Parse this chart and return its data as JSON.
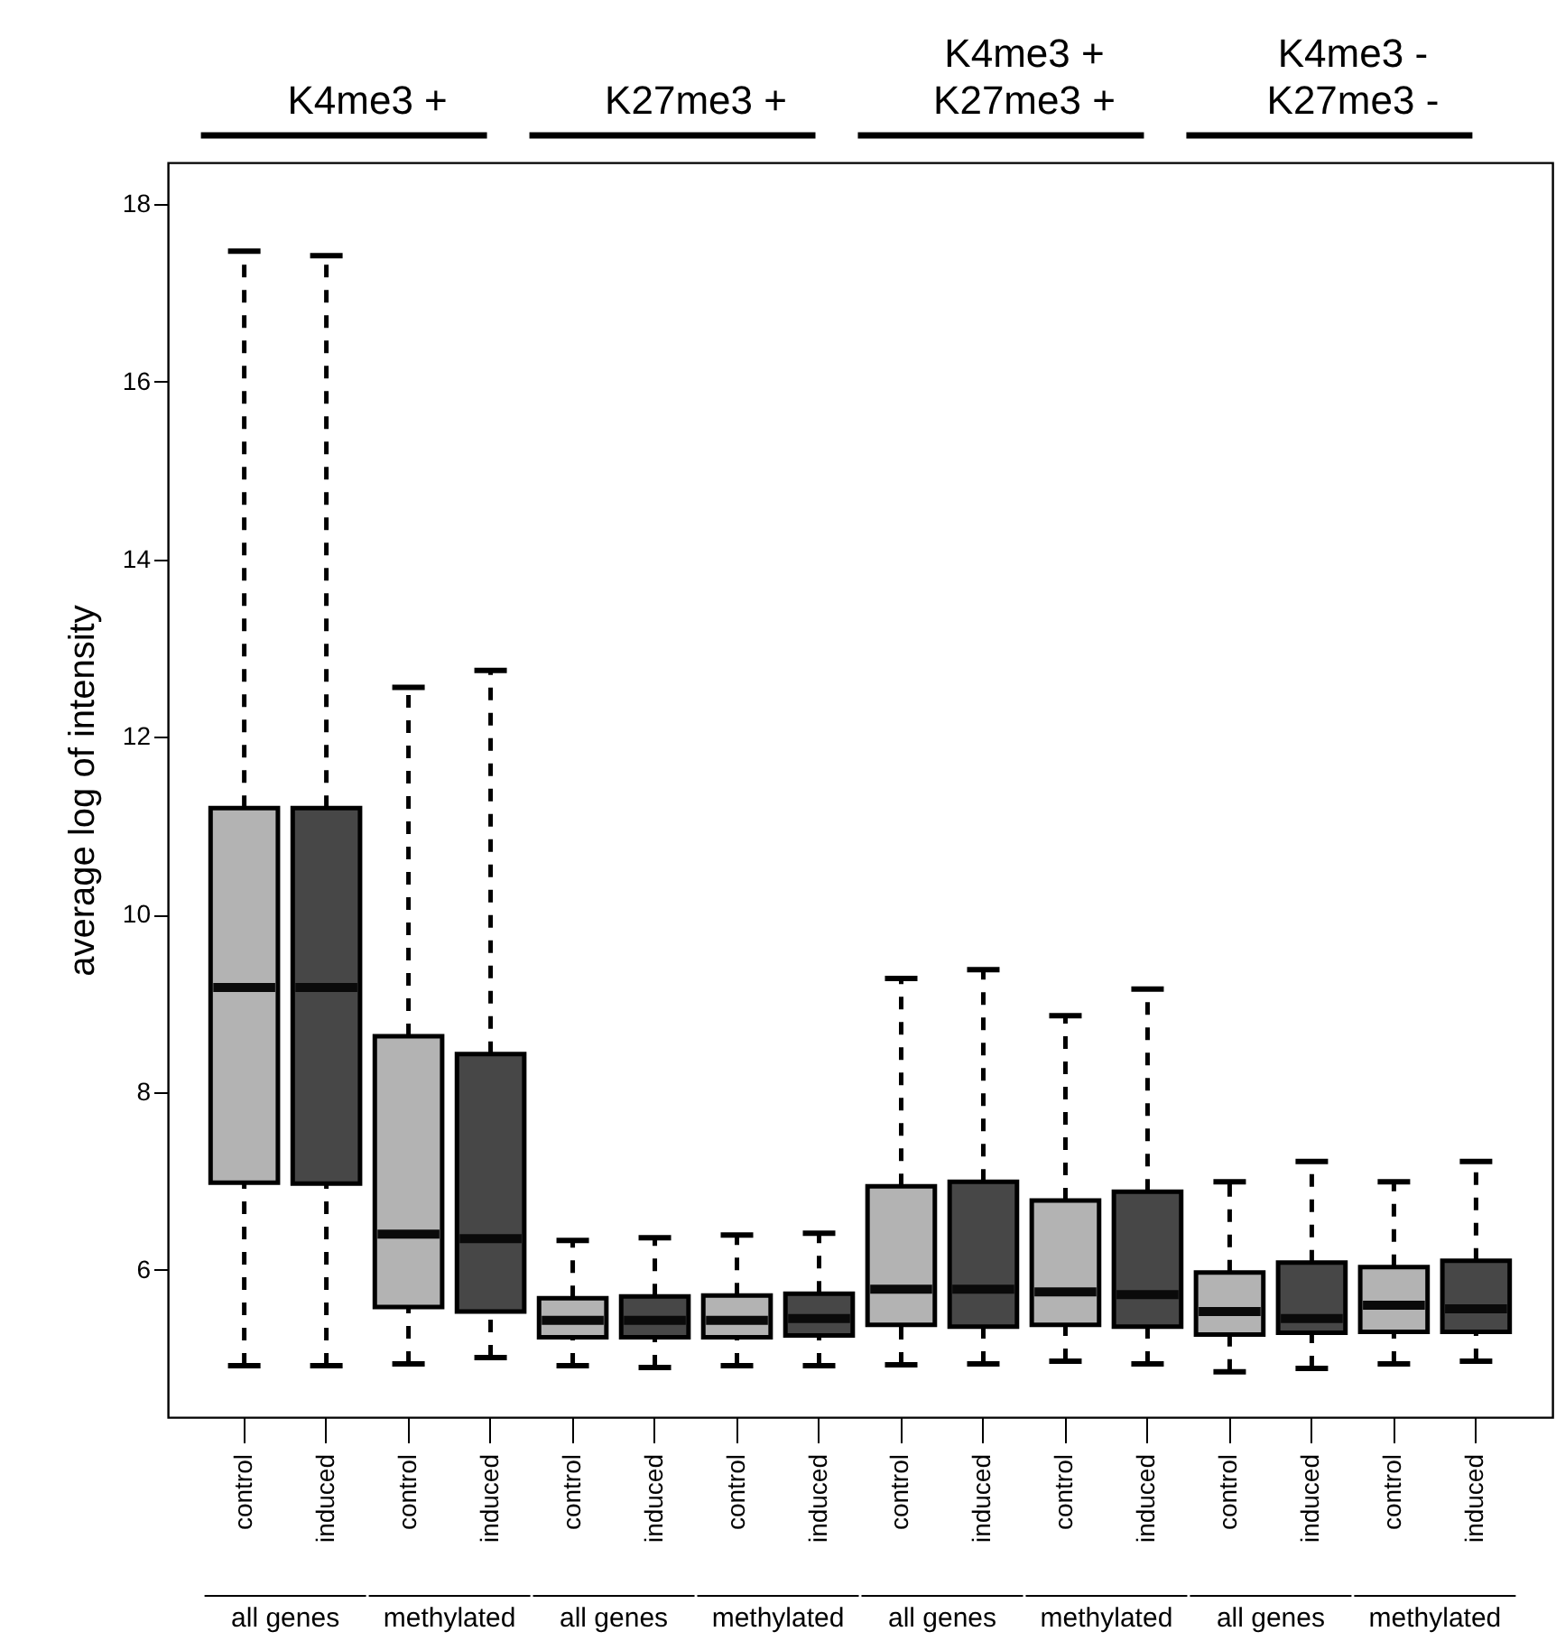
{
  "chart_data": {
    "type": "box",
    "ylabel": "average log of  intensity",
    "categories": [
      "control",
      "induced",
      "control",
      "induced",
      "control",
      "induced",
      "control",
      "induced",
      "control",
      "induced",
      "control",
      "induced",
      "control",
      "induced",
      "control",
      "induced"
    ],
    "colors": [
      "#b3b3b3",
      "#474747",
      "#b3b3b3",
      "#474747",
      "#b3b3b3",
      "#474747",
      "#b3b3b3",
      "#474747",
      "#b3b3b3",
      "#474747",
      "#b3b3b3",
      "#474747",
      "#b3b3b3",
      "#474747",
      "#b3b3b3",
      "#474747"
    ],
    "boxes": [
      {
        "low": 4.92,
        "q1": 6.98,
        "median": 9.18,
        "q3": 11.2,
        "high": 17.47
      },
      {
        "low": 4.92,
        "q1": 6.97,
        "median": 9.18,
        "q3": 11.2,
        "high": 17.42
      },
      {
        "low": 4.94,
        "q1": 5.58,
        "median": 6.4,
        "q3": 8.63,
        "high": 12.56
      },
      {
        "low": 5.01,
        "q1": 5.53,
        "median": 6.35,
        "q3": 8.43,
        "high": 12.75
      },
      {
        "low": 4.92,
        "q1": 5.24,
        "median": 5.43,
        "q3": 5.68,
        "high": 6.33
      },
      {
        "low": 4.9,
        "q1": 5.24,
        "median": 5.43,
        "q3": 5.7,
        "high": 6.36
      },
      {
        "low": 4.92,
        "q1": 5.24,
        "median": 5.43,
        "q3": 5.71,
        "high": 6.39
      },
      {
        "low": 4.92,
        "q1": 5.26,
        "median": 5.45,
        "q3": 5.73,
        "high": 6.41
      },
      {
        "low": 4.93,
        "q1": 5.38,
        "median": 5.78,
        "q3": 6.94,
        "high": 9.28
      },
      {
        "low": 4.94,
        "q1": 5.36,
        "median": 5.78,
        "q3": 6.99,
        "high": 9.38
      },
      {
        "low": 4.97,
        "q1": 5.38,
        "median": 5.75,
        "q3": 6.78,
        "high": 8.86
      },
      {
        "low": 4.94,
        "q1": 5.36,
        "median": 5.72,
        "q3": 6.88,
        "high": 9.16
      },
      {
        "low": 4.85,
        "q1": 5.27,
        "median": 5.53,
        "q3": 5.97,
        "high": 6.99
      },
      {
        "low": 4.89,
        "q1": 5.29,
        "median": 5.45,
        "q3": 6.08,
        "high": 7.22
      },
      {
        "low": 4.94,
        "q1": 5.3,
        "median": 5.6,
        "q3": 6.03,
        "high": 6.99
      },
      {
        "low": 4.97,
        "q1": 5.3,
        "median": 5.56,
        "q3": 6.1,
        "high": 7.22
      }
    ],
    "ylim": [
      4.34,
      18.47
    ],
    "yticks": [
      6,
      8,
      10,
      12,
      14,
      16,
      18
    ],
    "annotations": [
      "K4me3 +",
      "K27me3 +",
      "K4me3 +\nK27me3 +",
      "K4me3 -\nK27me3 -",
      "all genes",
      "methylated",
      "all genes",
      "methylated",
      "all genes",
      "methylated",
      "all genes",
      "methylated"
    ]
  }
}
